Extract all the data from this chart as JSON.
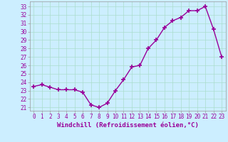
{
  "x": [
    0,
    1,
    2,
    3,
    4,
    5,
    6,
    7,
    8,
    9,
    10,
    11,
    12,
    13,
    14,
    15,
    16,
    17,
    18,
    19,
    20,
    21,
    22,
    23
  ],
  "y": [
    23.5,
    23.7,
    23.4,
    23.1,
    23.1,
    23.1,
    22.8,
    21.3,
    21.0,
    21.5,
    23.0,
    24.3,
    25.8,
    26.0,
    28.0,
    29.0,
    30.5,
    31.3,
    31.7,
    32.5,
    32.5,
    33.0,
    30.3,
    27.0
  ],
  "line_color": "#990099",
  "marker": "+",
  "marker_size": 4,
  "marker_lw": 1.2,
  "xlabel": "Windchill (Refroidissement éolien,°C)",
  "xlabel_fontsize": 6.5,
  "ylabel_ticks": [
    21,
    22,
    23,
    24,
    25,
    26,
    27,
    28,
    29,
    30,
    31,
    32,
    33
  ],
  "xlim": [
    -0.5,
    23.5
  ],
  "ylim": [
    20.6,
    33.6
  ],
  "bg_color": "#cceeff",
  "grid_color": "#aaddcc",
  "tick_color": "#990099",
  "tick_fontsize": 5.5,
  "linewidth": 1.0
}
